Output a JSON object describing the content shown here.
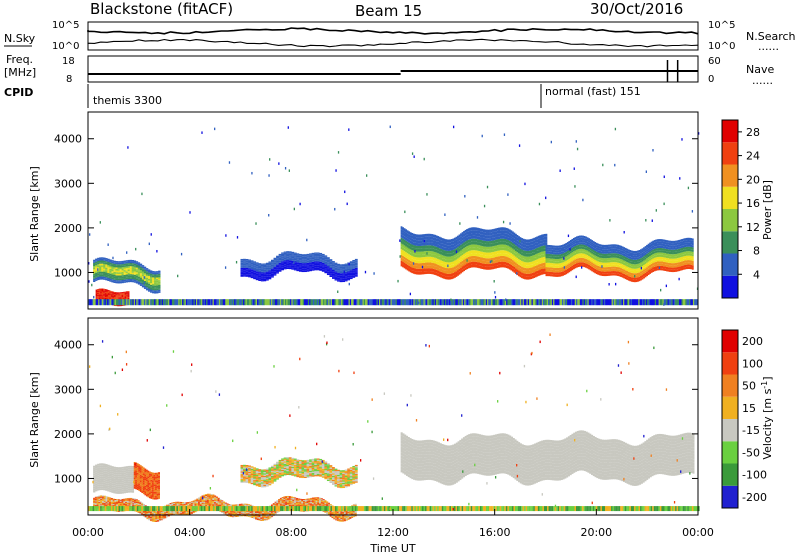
{
  "header": {
    "station": "Blackstone (fitACF)",
    "beam": "Beam 15",
    "date": "30/Oct/2016"
  },
  "top_panels": {
    "nsky_label": "N.Sky",
    "nsearch_label": "N.Search",
    "freq_label_1": "Freq.",
    "freq_label_2": "[MHz]",
    "nave_label": "Nave",
    "cpid_label": "CPID",
    "noise_ticks_left": [
      "10^5",
      "10^0"
    ],
    "noise_ticks_right": [
      "10^5",
      "10^0"
    ],
    "freq_ticks": [
      "18",
      "8"
    ],
    "nave_ticks": [
      "60",
      "0"
    ],
    "dots": "......",
    "cpid_segments": [
      {
        "label": "themis 3300",
        "start_hour": 0
      },
      {
        "label": "normal (fast) 151",
        "start_hour": 18
      }
    ]
  },
  "x_axis": {
    "title": "Time UT",
    "ticks": [
      "00:00",
      "04:00",
      "08:00",
      "12:00",
      "16:00",
      "20:00",
      "00:00"
    ],
    "range_hours": [
      0,
      24
    ]
  },
  "chart_data": [
    {
      "type": "heatmap",
      "panel": "power",
      "ylabel": "Slant Range [km]",
      "y_ticks": [
        "4000",
        "3000",
        "2000",
        "1000"
      ],
      "ylim": [
        180,
        4600
      ],
      "colorbar_label": "Power [dB]",
      "colorbar_ticks": [
        "28",
        "24",
        "20",
        "16",
        "12",
        "8",
        "4"
      ],
      "colorbar_range": [
        0,
        30
      ],
      "colors": [
        "#1010e0",
        "#3060c0",
        "#3a8f5a",
        "#8cc840",
        "#f0e020",
        "#f09020",
        "#f04010",
        "#e00000"
      ],
      "features": [
        {
          "t_start": 0.2,
          "t_end": 2.8,
          "range_low": 700,
          "range_high": 1200,
          "level": "high"
        },
        {
          "t_start": 6.0,
          "t_end": 10.5,
          "range_low": 800,
          "range_high": 1500,
          "level": "low"
        },
        {
          "t_start": 12.3,
          "t_end": 18.0,
          "range_low": 900,
          "range_high": 2000,
          "level": "high"
        },
        {
          "t_start": 18.0,
          "t_end": 23.8,
          "range_low": 900,
          "range_high": 1800,
          "level": "high"
        }
      ]
    },
    {
      "type": "heatmap",
      "panel": "velocity",
      "ylabel": "Slant Range [km]",
      "y_ticks": [
        "4000",
        "3000",
        "2000",
        "1000"
      ],
      "ylim": [
        180,
        4600
      ],
      "colorbar_label": "Velocity [m s",
      "colorbar_label_sup": "-1",
      "colorbar_label_end": "]",
      "colorbar_ticks": [
        "200",
        "100",
        "50",
        "15",
        "-15",
        "-50",
        "-100",
        "-200"
      ],
      "colors": [
        "#2020d0",
        "#3a9a3a",
        "#6ad040",
        "#c8c8c0",
        "#f0b020",
        "#f08020",
        "#f04010",
        "#e00000"
      ]
    }
  ]
}
